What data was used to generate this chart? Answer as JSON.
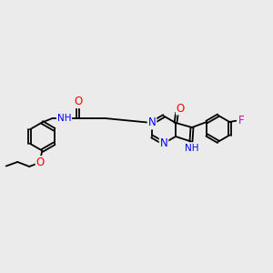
{
  "background_color": "#ebebeb",
  "bond_color": "#000000",
  "atom_colors": {
    "O": "#ff0000",
    "N": "#0000ff",
    "F": "#cc00cc",
    "NH": "#0000ff",
    "C": "#000000"
  },
  "bond_width": 1.3,
  "font_size": 7.5,
  "fig_width": 3.0,
  "fig_height": 3.0,
  "dpi": 100,
  "xlim": [
    0,
    12
  ],
  "ylim": [
    0,
    10
  ]
}
